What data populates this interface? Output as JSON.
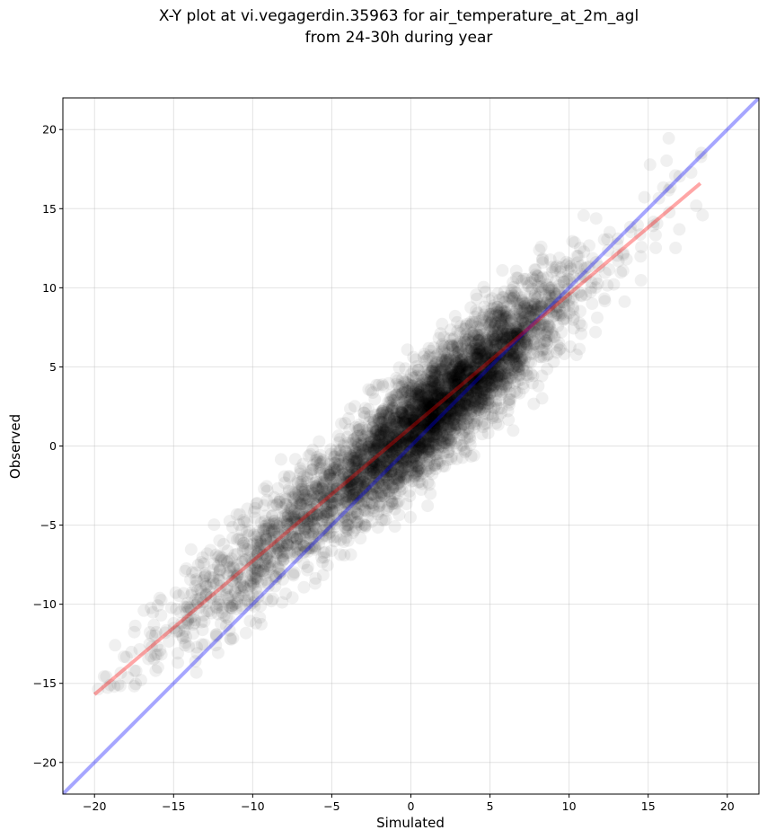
{
  "chart_data": {
    "type": "scatter",
    "title_lines": [
      "X-Y plot at vi.vegagerdin.35963 for air_temperature_at_2m_agl",
      "from 24-30h during year"
    ],
    "xlabel": "Simulated",
    "ylabel": "Observed",
    "xlim": [
      -22,
      22
    ],
    "ylim": [
      -22,
      22
    ],
    "xticks": [
      -20,
      -15,
      -10,
      -5,
      0,
      5,
      10,
      15,
      20
    ],
    "yticks": [
      -20,
      -15,
      -10,
      -5,
      0,
      5,
      10,
      15,
      20
    ],
    "grid": true,
    "point_color": "#000000",
    "point_alpha": 0.06,
    "points_cloud": {
      "approx_count": 5000,
      "x_range": [
        -20,
        18.5
      ],
      "y_range": [
        -15.5,
        20.2
      ],
      "approx_regression": {
        "slope": 0.84,
        "intercept": 1.1
      }
    },
    "lines": [
      {
        "role": "identity",
        "color": "#0000ff",
        "alpha": 0.35,
        "x": [
          -22,
          22
        ],
        "y": [
          -22,
          22
        ]
      },
      {
        "role": "fit",
        "color": "#ff0000",
        "alpha": 0.35,
        "x": [
          -20,
          18.3
        ],
        "y": [
          -15.7,
          16.6
        ]
      }
    ]
  }
}
